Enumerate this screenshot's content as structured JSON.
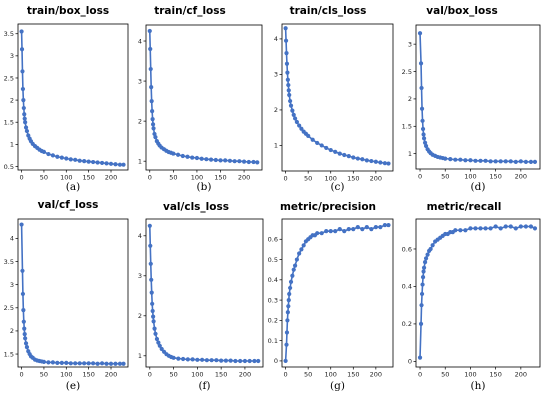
{
  "figure": {
    "series_color": "#4472c4",
    "panel_border_color": "#000000"
  },
  "chart_data": [
    {
      "type": "line",
      "title": "train/box_loss",
      "caption": "(a)",
      "xlim": [
        -8,
        238
      ],
      "ylim": [
        0.42,
        3.72
      ],
      "xticks": [
        0,
        50,
        100,
        150,
        200
      ],
      "yticks": [
        0.5,
        1,
        1.5,
        2,
        2.5,
        3,
        3.5
      ],
      "ytick_labels": [
        "0.5",
        "1",
        "1.5",
        "2",
        "2.5",
        "3",
        "3.5"
      ],
      "x": [
        0,
        1,
        2,
        3,
        4,
        5,
        6,
        7,
        8,
        10,
        12,
        15,
        18,
        21,
        25,
        30,
        35,
        40,
        45,
        50,
        60,
        70,
        80,
        90,
        100,
        110,
        120,
        130,
        140,
        150,
        160,
        170,
        180,
        190,
        200,
        210,
        220,
        228
      ],
      "y": [
        3.55,
        3.15,
        2.65,
        2.25,
        2.0,
        1.82,
        1.68,
        1.58,
        1.5,
        1.38,
        1.3,
        1.2,
        1.13,
        1.07,
        1.01,
        0.96,
        0.92,
        0.88,
        0.85,
        0.83,
        0.78,
        0.75,
        0.72,
        0.7,
        0.68,
        0.66,
        0.65,
        0.63,
        0.62,
        0.61,
        0.6,
        0.59,
        0.58,
        0.57,
        0.56,
        0.55,
        0.54,
        0.54
      ]
    },
    {
      "type": "line",
      "title": "train/cf_loss",
      "caption": "(b)",
      "xlim": [
        -8,
        238
      ],
      "ylim": [
        0.78,
        4.4
      ],
      "xticks": [
        0,
        50,
        100,
        150,
        200
      ],
      "yticks": [
        1,
        2,
        3,
        4
      ],
      "ytick_labels": [
        "1",
        "2",
        "3",
        "4"
      ],
      "x": [
        0,
        1,
        2,
        3,
        4,
        5,
        6,
        7,
        8,
        10,
        12,
        15,
        18,
        21,
        25,
        30,
        35,
        40,
        45,
        50,
        60,
        70,
        80,
        90,
        100,
        110,
        120,
        130,
        140,
        150,
        160,
        170,
        180,
        190,
        200,
        210,
        220,
        228
      ],
      "y": [
        4.25,
        3.8,
        3.3,
        2.85,
        2.5,
        2.25,
        2.05,
        1.92,
        1.82,
        1.68,
        1.6,
        1.5,
        1.44,
        1.39,
        1.34,
        1.3,
        1.26,
        1.23,
        1.21,
        1.19,
        1.16,
        1.13,
        1.11,
        1.09,
        1.08,
        1.06,
        1.05,
        1.04,
        1.03,
        1.02,
        1.02,
        1.01,
        1.0,
        1.0,
        0.99,
        0.98,
        0.98,
        0.97
      ]
    },
    {
      "type": "line",
      "title": "train/cls_loss",
      "caption": "(c)",
      "xlim": [
        -8,
        238
      ],
      "ylim": [
        0.28,
        4.42
      ],
      "xticks": [
        0,
        50,
        100,
        150,
        200
      ],
      "yticks": [
        1,
        2,
        3,
        4
      ],
      "ytick_labels": [
        "1",
        "2",
        "3",
        "4"
      ],
      "x": [
        0,
        1,
        2,
        3,
        4,
        5,
        6,
        7,
        8,
        10,
        12,
        15,
        18,
        21,
        25,
        30,
        35,
        40,
        45,
        50,
        60,
        70,
        80,
        90,
        100,
        110,
        120,
        130,
        140,
        150,
        160,
        170,
        180,
        190,
        200,
        210,
        220,
        228
      ],
      "y": [
        4.3,
        3.95,
        3.6,
        3.3,
        3.05,
        2.85,
        2.7,
        2.55,
        2.42,
        2.25,
        2.12,
        1.98,
        1.86,
        1.76,
        1.66,
        1.56,
        1.47,
        1.39,
        1.33,
        1.27,
        1.16,
        1.07,
        1.0,
        0.93,
        0.87,
        0.82,
        0.77,
        0.73,
        0.7,
        0.66,
        0.63,
        0.61,
        0.58,
        0.56,
        0.54,
        0.52,
        0.5,
        0.49
      ]
    },
    {
      "type": "line",
      "title": "val/box_loss",
      "caption": "(d)",
      "xlim": [
        -8,
        238
      ],
      "ylim": [
        0.72,
        3.35
      ],
      "xticks": [
        0,
        50,
        100,
        150,
        200
      ],
      "yticks": [
        1,
        1.5,
        2,
        2.5,
        3
      ],
      "ytick_labels": [
        "1",
        "1.5",
        "2",
        "2.5",
        "3"
      ],
      "x": [
        0,
        2,
        3,
        4,
        5,
        6,
        7,
        8,
        10,
        12,
        15,
        18,
        21,
        25,
        30,
        35,
        40,
        45,
        50,
        60,
        70,
        80,
        90,
        100,
        110,
        120,
        130,
        140,
        150,
        160,
        170,
        180,
        190,
        200,
        210,
        220,
        228
      ],
      "y": [
        3.2,
        2.65,
        2.2,
        1.82,
        1.6,
        1.45,
        1.35,
        1.28,
        1.2,
        1.14,
        1.08,
        1.04,
        1.01,
        0.98,
        0.96,
        0.94,
        0.93,
        0.92,
        0.91,
        0.9,
        0.89,
        0.89,
        0.88,
        0.88,
        0.87,
        0.87,
        0.87,
        0.86,
        0.86,
        0.86,
        0.86,
        0.86,
        0.85,
        0.86,
        0.85,
        0.85,
        0.85
      ]
    },
    {
      "type": "line",
      "title": "val/cf_loss",
      "caption": "(e)",
      "xlim": [
        -8,
        238
      ],
      "ylim": [
        1.22,
        4.42
      ],
      "xticks": [
        0,
        50,
        100,
        150,
        200
      ],
      "yticks": [
        1.5,
        2,
        2.5,
        3,
        3.5,
        4
      ],
      "ytick_labels": [
        "1.5",
        "2",
        "2.5",
        "3",
        "3.5",
        "4"
      ],
      "x": [
        0,
        2,
        3,
        4,
        5,
        6,
        7,
        8,
        10,
        12,
        15,
        18,
        21,
        25,
        30,
        35,
        40,
        45,
        50,
        60,
        70,
        80,
        90,
        100,
        110,
        120,
        130,
        140,
        150,
        160,
        170,
        180,
        190,
        200,
        210,
        220,
        228
      ],
      "y": [
        4.3,
        3.3,
        2.8,
        2.45,
        2.2,
        2.05,
        1.93,
        1.84,
        1.73,
        1.65,
        1.56,
        1.5,
        1.45,
        1.42,
        1.38,
        1.36,
        1.35,
        1.34,
        1.33,
        1.32,
        1.32,
        1.31,
        1.31,
        1.31,
        1.3,
        1.3,
        1.3,
        1.3,
        1.3,
        1.3,
        1.29,
        1.3,
        1.29,
        1.29,
        1.29,
        1.29,
        1.29
      ]
    },
    {
      "type": "line",
      "title": "val/cls_loss",
      "caption": "(f)",
      "xlim": [
        -8,
        238
      ],
      "ylim": [
        0.72,
        4.42
      ],
      "xticks": [
        0,
        50,
        100,
        150,
        200
      ],
      "yticks": [
        1,
        2,
        3,
        4
      ],
      "ytick_labels": [
        "1",
        "2",
        "3",
        "4"
      ],
      "x": [
        0,
        1,
        2,
        3,
        4,
        5,
        6,
        7,
        8,
        10,
        12,
        15,
        18,
        21,
        25,
        30,
        35,
        40,
        45,
        50,
        60,
        70,
        80,
        90,
        100,
        110,
        120,
        130,
        140,
        150,
        160,
        170,
        180,
        190,
        200,
        210,
        220,
        228
      ],
      "y": [
        4.25,
        3.75,
        3.3,
        2.9,
        2.58,
        2.3,
        2.12,
        1.98,
        1.86,
        1.68,
        1.55,
        1.42,
        1.33,
        1.25,
        1.17,
        1.1,
        1.04,
        1.0,
        0.97,
        0.95,
        0.93,
        0.92,
        0.91,
        0.91,
        0.9,
        0.9,
        0.89,
        0.89,
        0.89,
        0.88,
        0.88,
        0.88,
        0.87,
        0.87,
        0.87,
        0.87,
        0.87,
        0.87
      ]
    },
    {
      "type": "line",
      "title": "metric/precision",
      "caption": "(g)",
      "xlim": [
        -8,
        238
      ],
      "ylim": [
        -0.03,
        0.7
      ],
      "xticks": [
        0,
        50,
        100,
        150,
        200
      ],
      "yticks": [
        0,
        0.1,
        0.2,
        0.3,
        0.4,
        0.5,
        0.6
      ],
      "ytick_labels": [
        "0",
        "0.1",
        "0.2",
        "0.3",
        "0.4",
        "0.5",
        "0.6"
      ],
      "x": [
        0,
        2,
        3,
        4,
        5,
        6,
        7,
        8,
        10,
        12,
        15,
        18,
        21,
        25,
        30,
        35,
        40,
        45,
        50,
        55,
        60,
        65,
        70,
        80,
        90,
        100,
        110,
        120,
        130,
        140,
        150,
        160,
        170,
        180,
        190,
        200,
        210,
        220,
        228
      ],
      "y": [
        0.0,
        0.08,
        0.14,
        0.2,
        0.24,
        0.27,
        0.3,
        0.33,
        0.36,
        0.39,
        0.42,
        0.45,
        0.47,
        0.5,
        0.53,
        0.55,
        0.57,
        0.59,
        0.6,
        0.61,
        0.62,
        0.62,
        0.63,
        0.63,
        0.64,
        0.64,
        0.64,
        0.65,
        0.64,
        0.65,
        0.65,
        0.66,
        0.65,
        0.66,
        0.65,
        0.66,
        0.66,
        0.67,
        0.67
      ]
    },
    {
      "type": "line",
      "title": "metric/recall",
      "caption": "(h)",
      "xlim": [
        -8,
        238
      ],
      "ylim": [
        -0.03,
        0.76
      ],
      "xticks": [
        0,
        50,
        100,
        150,
        200
      ],
      "yticks": [
        0,
        0.2,
        0.4,
        0.6
      ],
      "ytick_labels": [
        "0",
        "0.2",
        "0.4",
        "0.6"
      ],
      "x": [
        0,
        2,
        3,
        4,
        5,
        6,
        7,
        8,
        10,
        12,
        15,
        18,
        21,
        25,
        30,
        35,
        40,
        45,
        50,
        55,
        60,
        65,
        70,
        80,
        90,
        100,
        110,
        120,
        130,
        140,
        150,
        160,
        170,
        180,
        190,
        200,
        210,
        220,
        228
      ],
      "y": [
        0.02,
        0.2,
        0.3,
        0.36,
        0.41,
        0.45,
        0.48,
        0.5,
        0.53,
        0.55,
        0.57,
        0.59,
        0.6,
        0.62,
        0.64,
        0.65,
        0.66,
        0.67,
        0.68,
        0.68,
        0.69,
        0.69,
        0.7,
        0.7,
        0.7,
        0.71,
        0.71,
        0.71,
        0.71,
        0.71,
        0.72,
        0.71,
        0.72,
        0.72,
        0.71,
        0.72,
        0.72,
        0.72,
        0.71
      ]
    }
  ]
}
